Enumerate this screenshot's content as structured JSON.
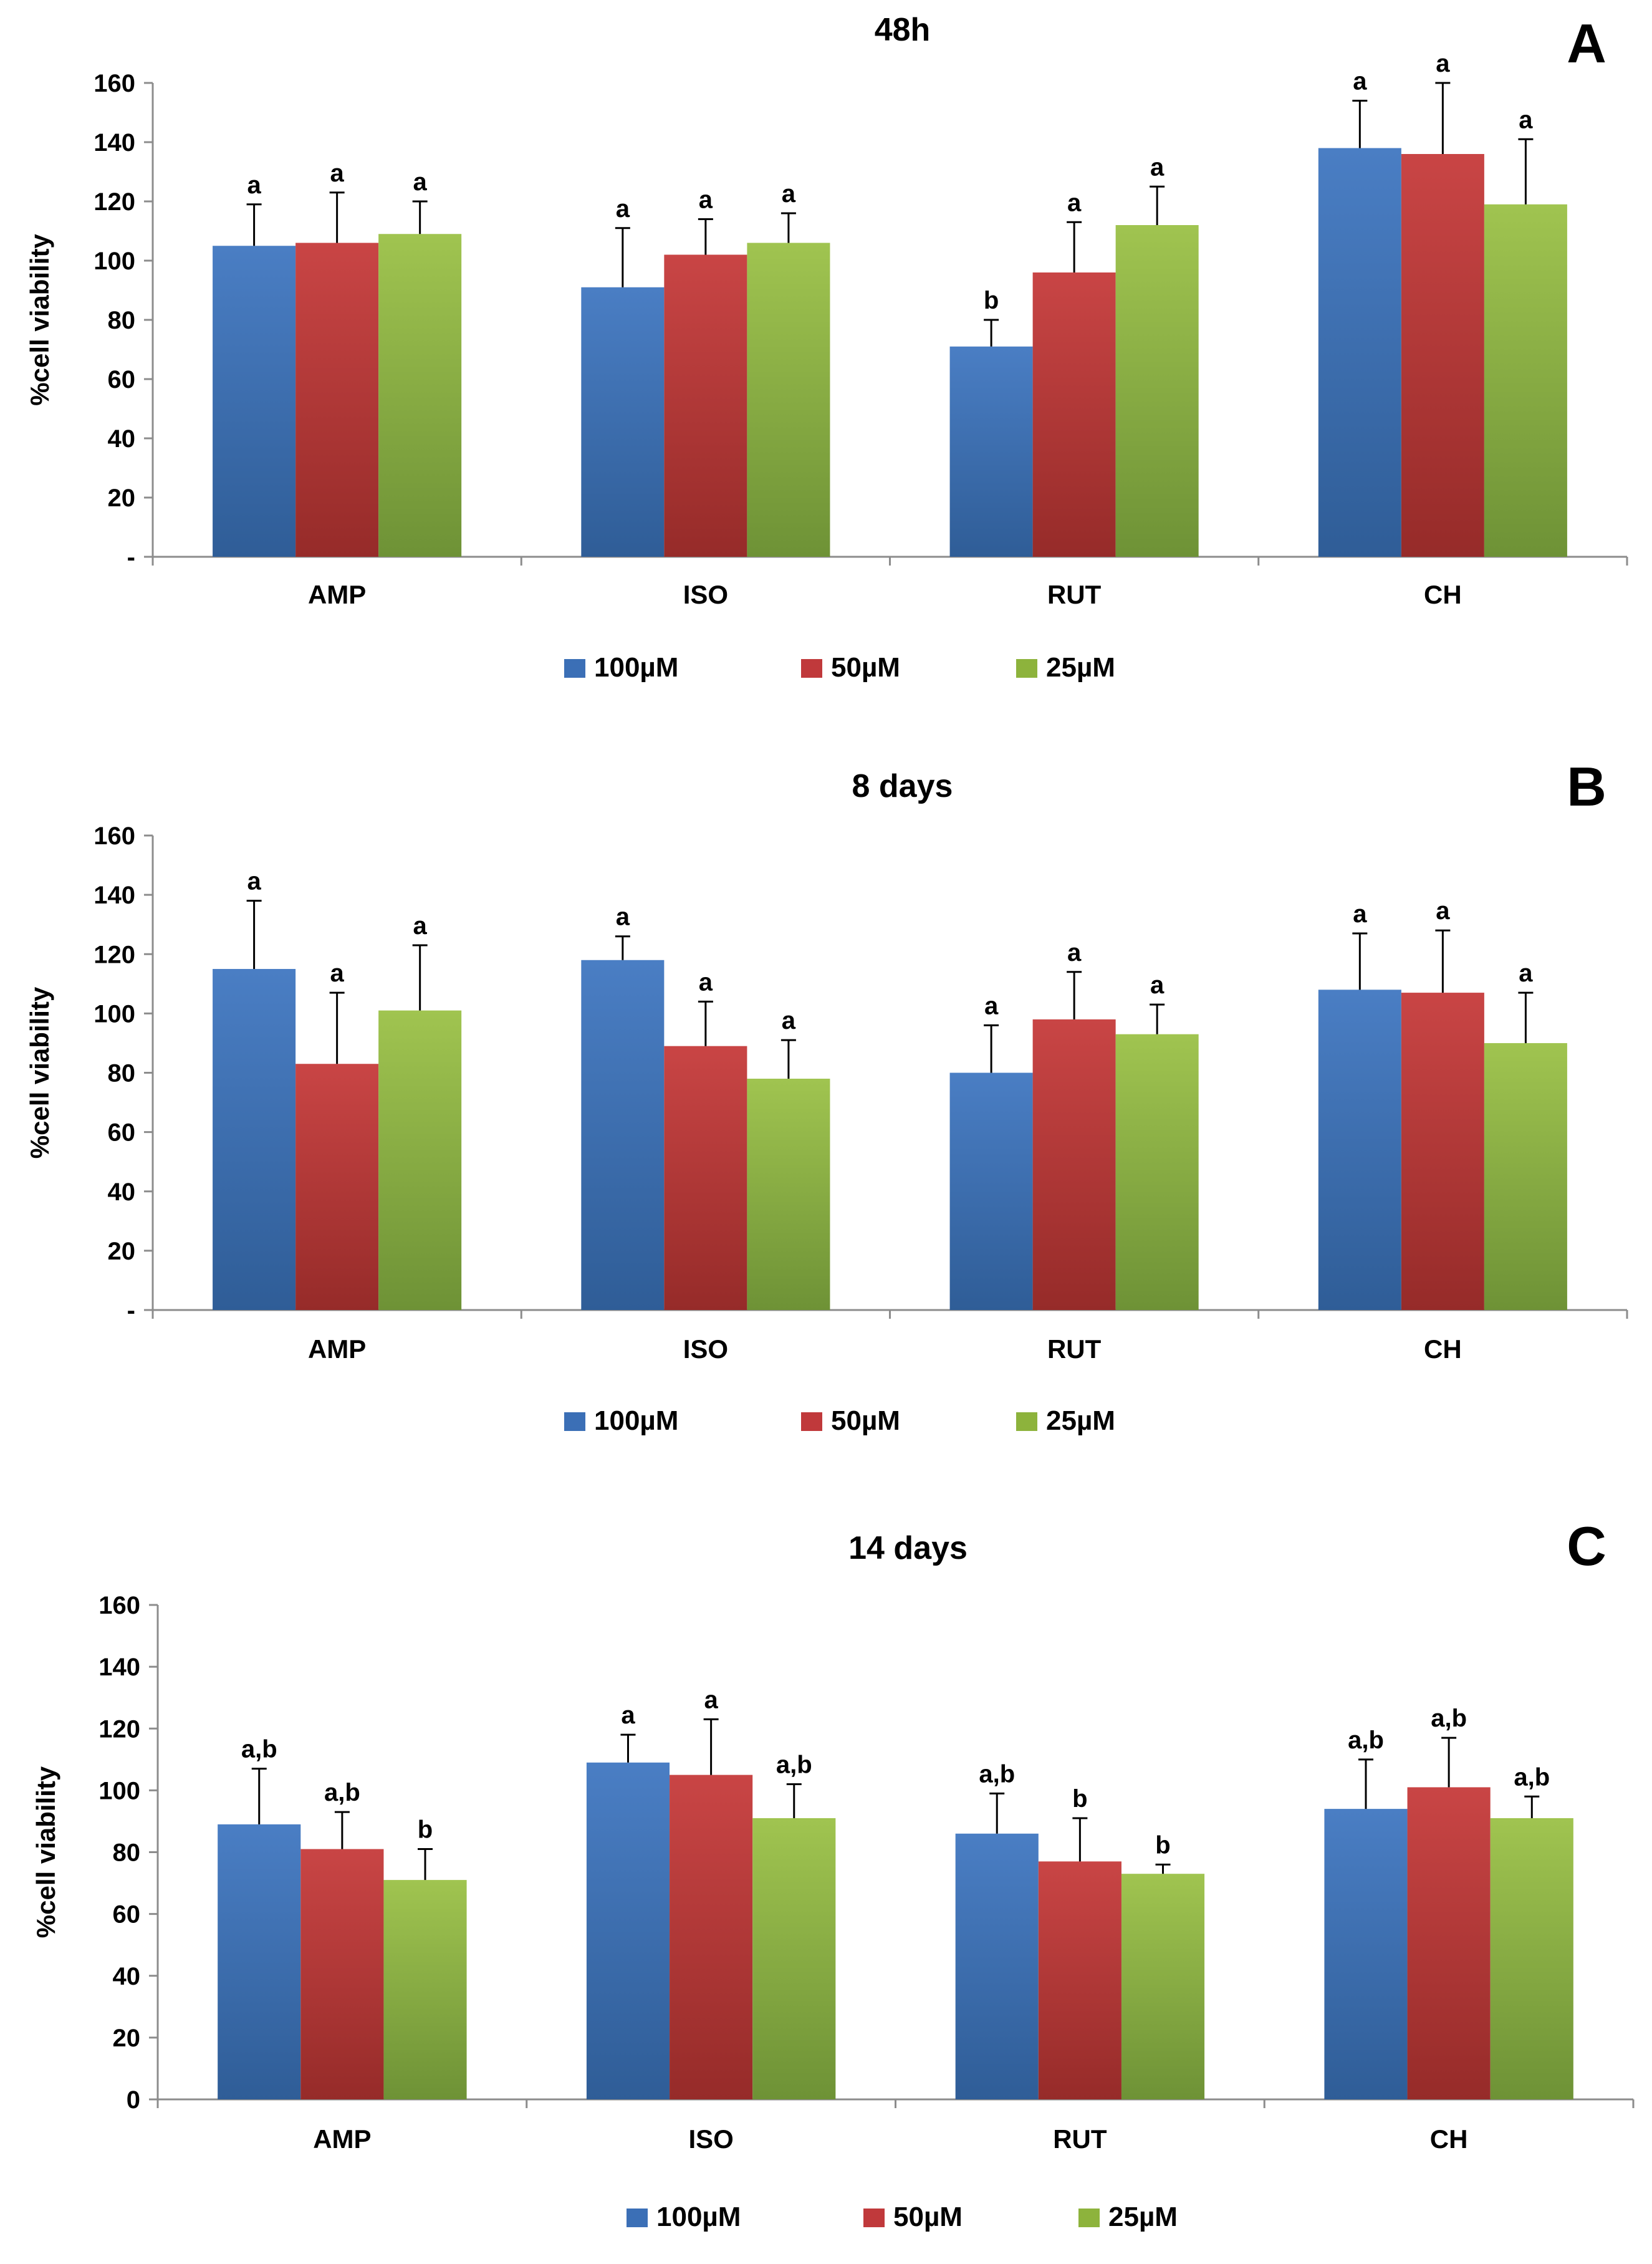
{
  "chart_data": [
    {
      "type": "bar",
      "panel": "A",
      "title": "48h",
      "ylabel": "%cell viability",
      "xlabel": "",
      "ylim": [
        0,
        160
      ],
      "yticks": [
        0,
        20,
        40,
        60,
        80,
        100,
        120,
        140,
        160
      ],
      "ytick_labels": [
        "-",
        "20",
        "40",
        "60",
        "80",
        "100",
        "120",
        "140",
        "160"
      ],
      "categories": [
        "AMP",
        "ISO",
        "RUT",
        "CH"
      ],
      "series": [
        {
          "name": "100µM",
          "values": [
            105,
            91,
            71,
            138
          ],
          "errors": [
            14,
            20,
            9,
            16
          ],
          "sig": [
            "a",
            "a",
            "b",
            "a"
          ]
        },
        {
          "name": "50µM",
          "values": [
            106,
            102,
            96,
            136
          ],
          "errors": [
            17,
            12,
            17,
            24
          ],
          "sig": [
            "a",
            "a",
            "a",
            "a"
          ]
        },
        {
          "name": "25µM",
          "values": [
            109,
            106,
            112,
            119
          ],
          "errors": [
            11,
            10,
            13,
            22
          ],
          "sig": [
            "a",
            "a",
            "a",
            "a"
          ]
        }
      ],
      "legend": "bottom"
    },
    {
      "type": "bar",
      "panel": "B",
      "title": "8 days",
      "ylabel": "%cell viability",
      "xlabel": "",
      "ylim": [
        0,
        160
      ],
      "yticks": [
        0,
        20,
        40,
        60,
        80,
        100,
        120,
        140,
        160
      ],
      "ytick_labels": [
        "-",
        "20",
        "40",
        "60",
        "80",
        "100",
        "120",
        "140",
        "160"
      ],
      "categories": [
        "AMP",
        "ISO",
        "RUT",
        "CH"
      ],
      "series": [
        {
          "name": "100µM",
          "values": [
            115,
            118,
            80,
            108
          ],
          "errors": [
            23,
            8,
            16,
            19
          ],
          "sig": [
            "a",
            "a",
            "a",
            "a"
          ]
        },
        {
          "name": "50µM",
          "values": [
            83,
            89,
            98,
            107
          ],
          "errors": [
            24,
            15,
            16,
            21
          ],
          "sig": [
            "a",
            "a",
            "a",
            "a"
          ]
        },
        {
          "name": "25µM",
          "values": [
            101,
            78,
            93,
            90
          ],
          "errors": [
            22,
            13,
            10,
            17
          ],
          "sig": [
            "a",
            "a",
            "a",
            "a"
          ]
        }
      ],
      "legend": "bottom"
    },
    {
      "type": "bar",
      "panel": "C",
      "title": "14 days",
      "ylabel": "%cell viability",
      "xlabel": "",
      "ylim": [
        0,
        160
      ],
      "yticks": [
        0,
        20,
        40,
        60,
        80,
        100,
        120,
        140,
        160
      ],
      "ytick_labels": [
        "0",
        "20",
        "40",
        "60",
        "80",
        "100",
        "120",
        "140",
        "160"
      ],
      "categories": [
        "AMP",
        "ISO",
        "RUT",
        "CH"
      ],
      "series": [
        {
          "name": "100µM",
          "values": [
            89,
            109,
            86,
            94
          ],
          "errors": [
            18,
            9,
            13,
            16
          ],
          "sig": [
            "a,b",
            "a",
            "a,b",
            "a,b"
          ]
        },
        {
          "name": "50µM",
          "values": [
            81,
            105,
            77,
            101
          ],
          "errors": [
            12,
            18,
            14,
            16
          ],
          "sig": [
            "a,b",
            "a",
            "b",
            "a,b"
          ]
        },
        {
          "name": "25µM",
          "values": [
            71,
            91,
            73,
            91
          ],
          "errors": [
            10,
            11,
            3,
            7
          ],
          "sig": [
            "b",
            "a,b",
            "b",
            "a,b"
          ]
        }
      ],
      "legend": "bottom"
    }
  ],
  "colors": {
    "series": [
      {
        "top": "#4a7ec4",
        "bottom": "#2f5d97"
      },
      {
        "top": "#c94545",
        "bottom": "#962b29"
      },
      {
        "top": "#a0c450",
        "bottom": "#6e9236"
      }
    ],
    "legend": [
      "#3b6fb6",
      "#c0393b",
      "#8db33c"
    ],
    "axis": "#8c8c8c",
    "error": "#000000"
  }
}
